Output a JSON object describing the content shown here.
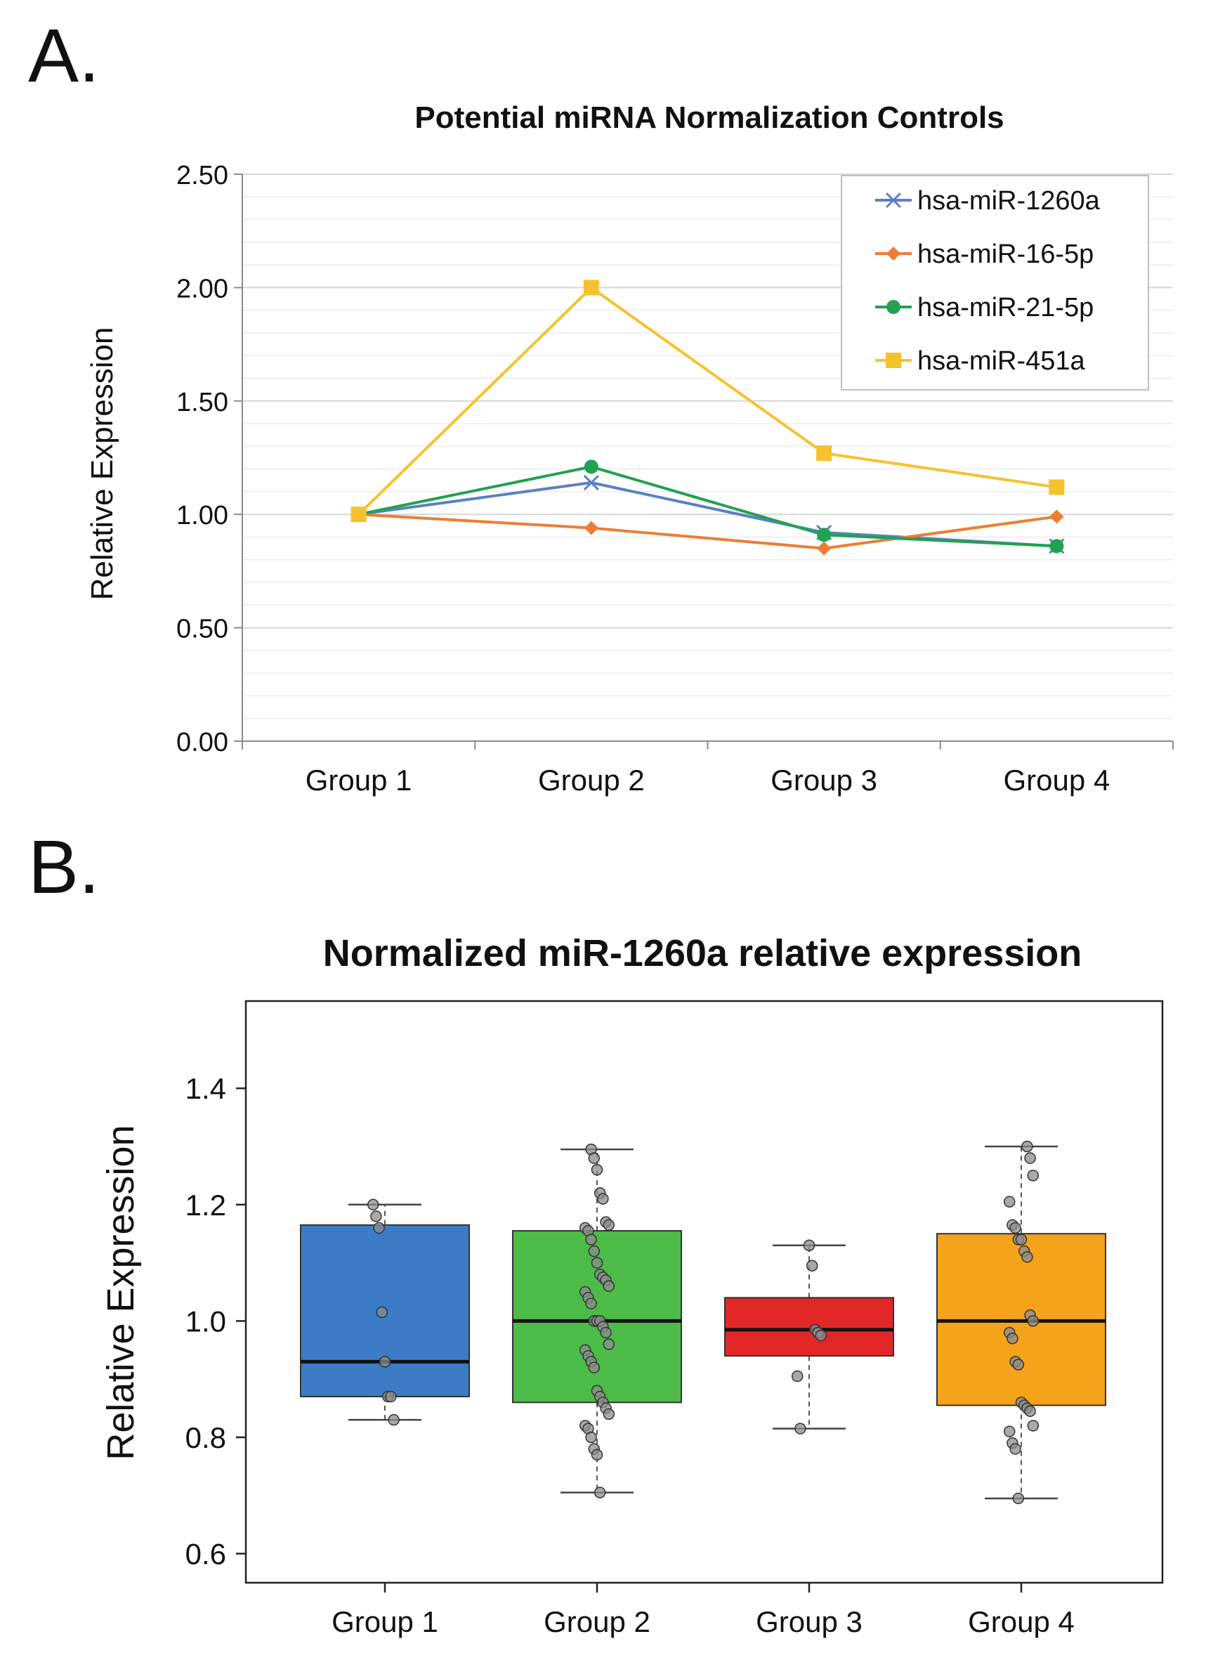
{
  "panels": {
    "a": {
      "label": "A."
    },
    "b": {
      "label": "B."
    }
  },
  "chart_data": [
    {
      "type": "line",
      "title": "Potential miRNA Normalization Controls",
      "xlabel": "",
      "ylabel": "Relative Expression",
      "categories": [
        "Group 1",
        "Group 2",
        "Group 3",
        "Group 4"
      ],
      "ylim": [
        0,
        2.5
      ],
      "yticks": [
        0,
        0.5,
        1.0,
        1.5,
        2.0,
        2.5
      ],
      "ytick_labels": [
        "0.00",
        "0.50",
        "1.00",
        "1.50",
        "2.00",
        "2.50"
      ],
      "grid": true,
      "legend_position": "top-right",
      "series": [
        {
          "name": "hsa-miR-1260a",
          "marker": "x",
          "color": "#5b7fc4",
          "values": [
            1.0,
            1.14,
            0.92,
            0.86
          ]
        },
        {
          "name": "hsa-miR-16-5p",
          "marker": "diamond",
          "color": "#ec7d35",
          "values": [
            1.0,
            0.94,
            0.85,
            0.99
          ]
        },
        {
          "name": "hsa-miR-21-5p",
          "marker": "circle",
          "color": "#22a150",
          "values": [
            1.0,
            1.21,
            0.91,
            0.86
          ]
        },
        {
          "name": "hsa-miR-451a",
          "marker": "square",
          "color": "#f5c22d",
          "values": [
            1.0,
            2.0,
            1.27,
            1.12
          ]
        }
      ]
    },
    {
      "type": "box",
      "title": "Normalized miR-1260a relative expression",
      "xlabel": "",
      "ylabel": "Relative Expression",
      "categories": [
        "Group 1",
        "Group 2",
        "Group 3",
        "Group 4"
      ],
      "ylim": [
        0.55,
        1.55
      ],
      "yticks": [
        0.6,
        0.8,
        1.0,
        1.2,
        1.4
      ],
      "ytick_labels": [
        "0.6",
        "0.8",
        "1.0",
        "1.2",
        "1.4"
      ],
      "boxes": [
        {
          "name": "Group 1",
          "color": "#3c7bc6",
          "whisker_low": 0.83,
          "q1": 0.87,
          "median": 0.93,
          "q3": 1.165,
          "whisker_high": 1.2,
          "points": [
            1.2,
            1.18,
            1.16,
            1.015,
            0.93,
            0.87,
            0.87,
            0.83
          ]
        },
        {
          "name": "Group 2",
          "color": "#4cbb47",
          "whisker_low": 0.705,
          "q1": 0.86,
          "median": 1.0,
          "q3": 1.155,
          "whisker_high": 1.295,
          "points": [
            1.295,
            1.28,
            1.26,
            1.22,
            1.21,
            1.17,
            1.165,
            1.16,
            1.155,
            1.14,
            1.12,
            1.1,
            1.08,
            1.075,
            1.07,
            1.06,
            1.05,
            1.04,
            1.03,
            1.0,
            1.0,
            1.0,
            0.99,
            0.98,
            0.96,
            0.95,
            0.94,
            0.93,
            0.92,
            0.88,
            0.87,
            0.86,
            0.85,
            0.84,
            0.82,
            0.815,
            0.8,
            0.78,
            0.77,
            0.705
          ]
        },
        {
          "name": "Group 3",
          "color": "#e22728",
          "whisker_low": 0.815,
          "q1": 0.94,
          "median": 0.985,
          "q3": 1.04,
          "whisker_high": 1.13,
          "points": [
            1.13,
            1.095,
            0.985,
            0.98,
            0.975,
            0.905,
            0.815
          ]
        },
        {
          "name": "Group 4",
          "color": "#f5a31a",
          "whisker_low": 0.695,
          "q1": 0.855,
          "median": 1.0,
          "q3": 1.15,
          "whisker_high": 1.3,
          "points": [
            1.3,
            1.28,
            1.25,
            1.205,
            1.165,
            1.16,
            1.14,
            1.14,
            1.12,
            1.11,
            1.01,
            1.0,
            0.98,
            0.97,
            0.93,
            0.925,
            0.86,
            0.855,
            0.85,
            0.845,
            0.82,
            0.81,
            0.79,
            0.78,
            0.695
          ]
        }
      ]
    }
  ]
}
